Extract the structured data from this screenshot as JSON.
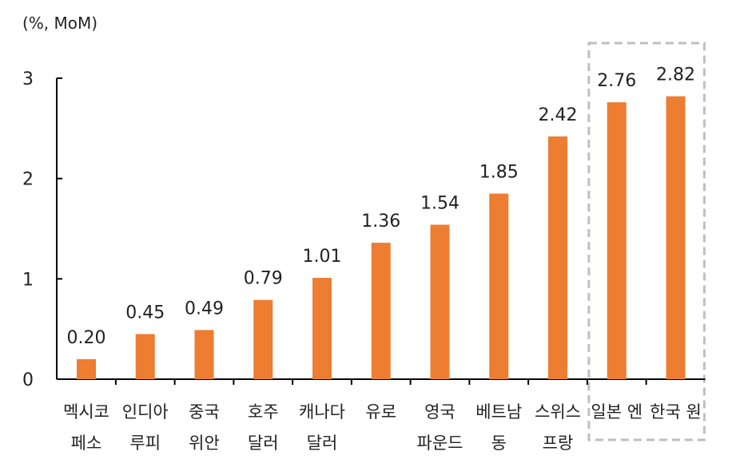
{
  "chart_data": {
    "type": "bar",
    "unit_label": "(%, MoM)",
    "categories": [
      [
        "멕시코",
        "페소"
      ],
      [
        "인디아",
        "루피"
      ],
      [
        "중국",
        "위안"
      ],
      [
        "호주",
        "달러"
      ],
      [
        "캐나다",
        "달러"
      ],
      [
        "유로",
        ""
      ],
      [
        "영국",
        "파운드"
      ],
      [
        "베트남",
        "동"
      ],
      [
        "스위스",
        "프랑"
      ],
      [
        "일본 엔",
        ""
      ],
      [
        "한국 원",
        ""
      ]
    ],
    "values": [
      0.2,
      0.45,
      0.49,
      0.79,
      1.01,
      1.36,
      1.54,
      1.85,
      2.42,
      2.76,
      2.82
    ],
    "value_labels": [
      "0.20",
      "0.45",
      "0.49",
      "0.79",
      "1.01",
      "1.36",
      "1.54",
      "1.85",
      "2.42",
      "2.76",
      "2.82"
    ],
    "yticks": [
      "0",
      "1",
      "2",
      "3"
    ],
    "ylim": [
      0,
      3
    ],
    "bar_color": "#ED7D31",
    "highlight_box_color": "#BFBFBF",
    "highlighted_categories": [
      "일본 엔",
      "한국 원"
    ],
    "grid": false
  }
}
